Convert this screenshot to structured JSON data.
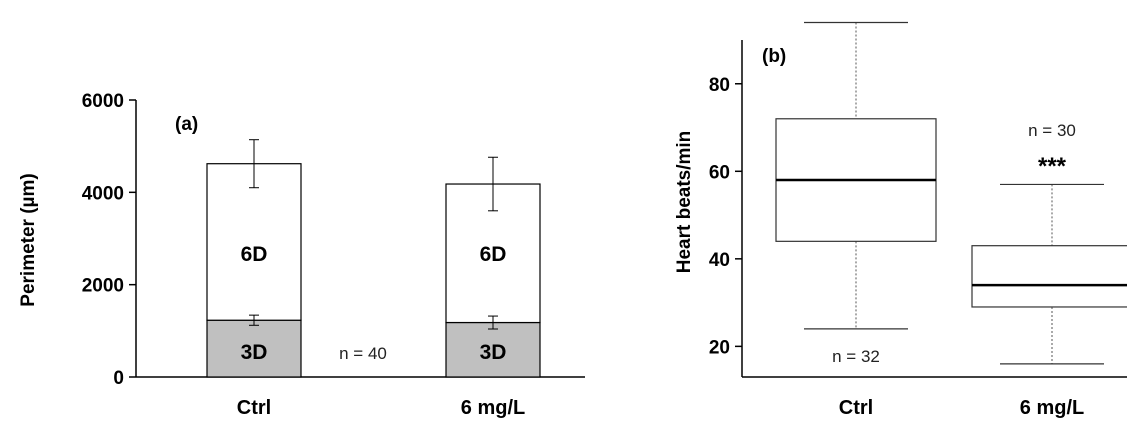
{
  "chart_data": [
    {
      "panel_label": "(a)",
      "type": "bar",
      "stacked": true,
      "categories": [
        "Ctrl",
        "6 mg/L"
      ],
      "ylabel": "Perimeter (µm)",
      "ylim": [
        0,
        6000
      ],
      "yticks": [
        "0",
        "2000",
        "4000",
        "6000"
      ],
      "series": [
        {
          "name": "3D",
          "values": [
            1230,
            1180
          ],
          "errors": [
            110,
            140
          ],
          "color": "#c0c0c0"
        },
        {
          "name": "6D",
          "values": [
            3390,
            3000
          ],
          "errors": [
            520,
            580
          ],
          "color": "#ffffff"
        }
      ],
      "annotation": "n = 40"
    },
    {
      "panel_label": "(b)",
      "type": "box",
      "categories": [
        "Ctrl",
        "6 mg/L"
      ],
      "ylabel": "Heart beats/min",
      "ylim": [
        13,
        90
      ],
      "yticks": [
        "20",
        "40",
        "60",
        "80"
      ],
      "boxes": [
        {
          "min": 24,
          "q1": 44,
          "median": 58,
          "q3": 72,
          "max": 94,
          "annotation": "n = 32"
        },
        {
          "min": 16,
          "q1": 29,
          "median": 34,
          "q3": 43,
          "max": 57,
          "annotation": "n = 30",
          "significance": "***"
        }
      ]
    }
  ]
}
